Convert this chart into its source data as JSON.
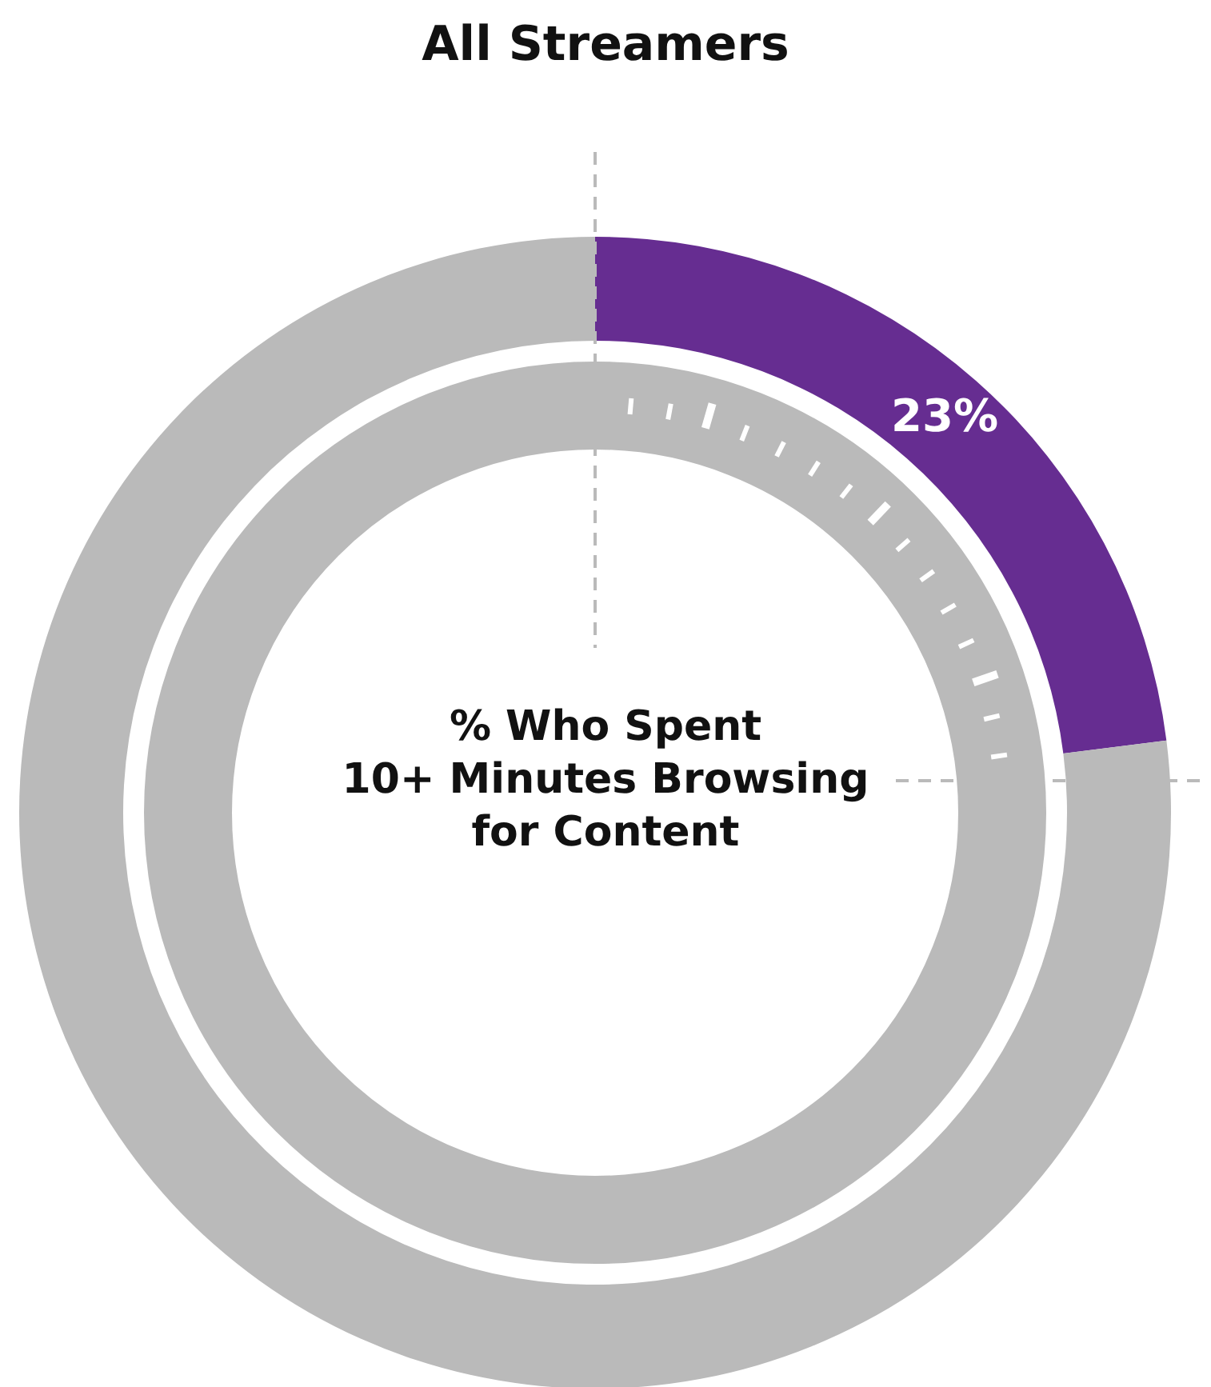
{
  "chart_data": {
    "type": "donut",
    "title": "All Streamers",
    "categories": [
      null,
      null
    ],
    "values": [
      23,
      77
    ],
    "colors": [
      "#662d91",
      "#bababa"
    ],
    "value_labels": [
      "23%",
      null
    ],
    "annotations": [
      "% Who Spent\n10+ Minutes Browsing\nfor Content"
    ]
  }
}
